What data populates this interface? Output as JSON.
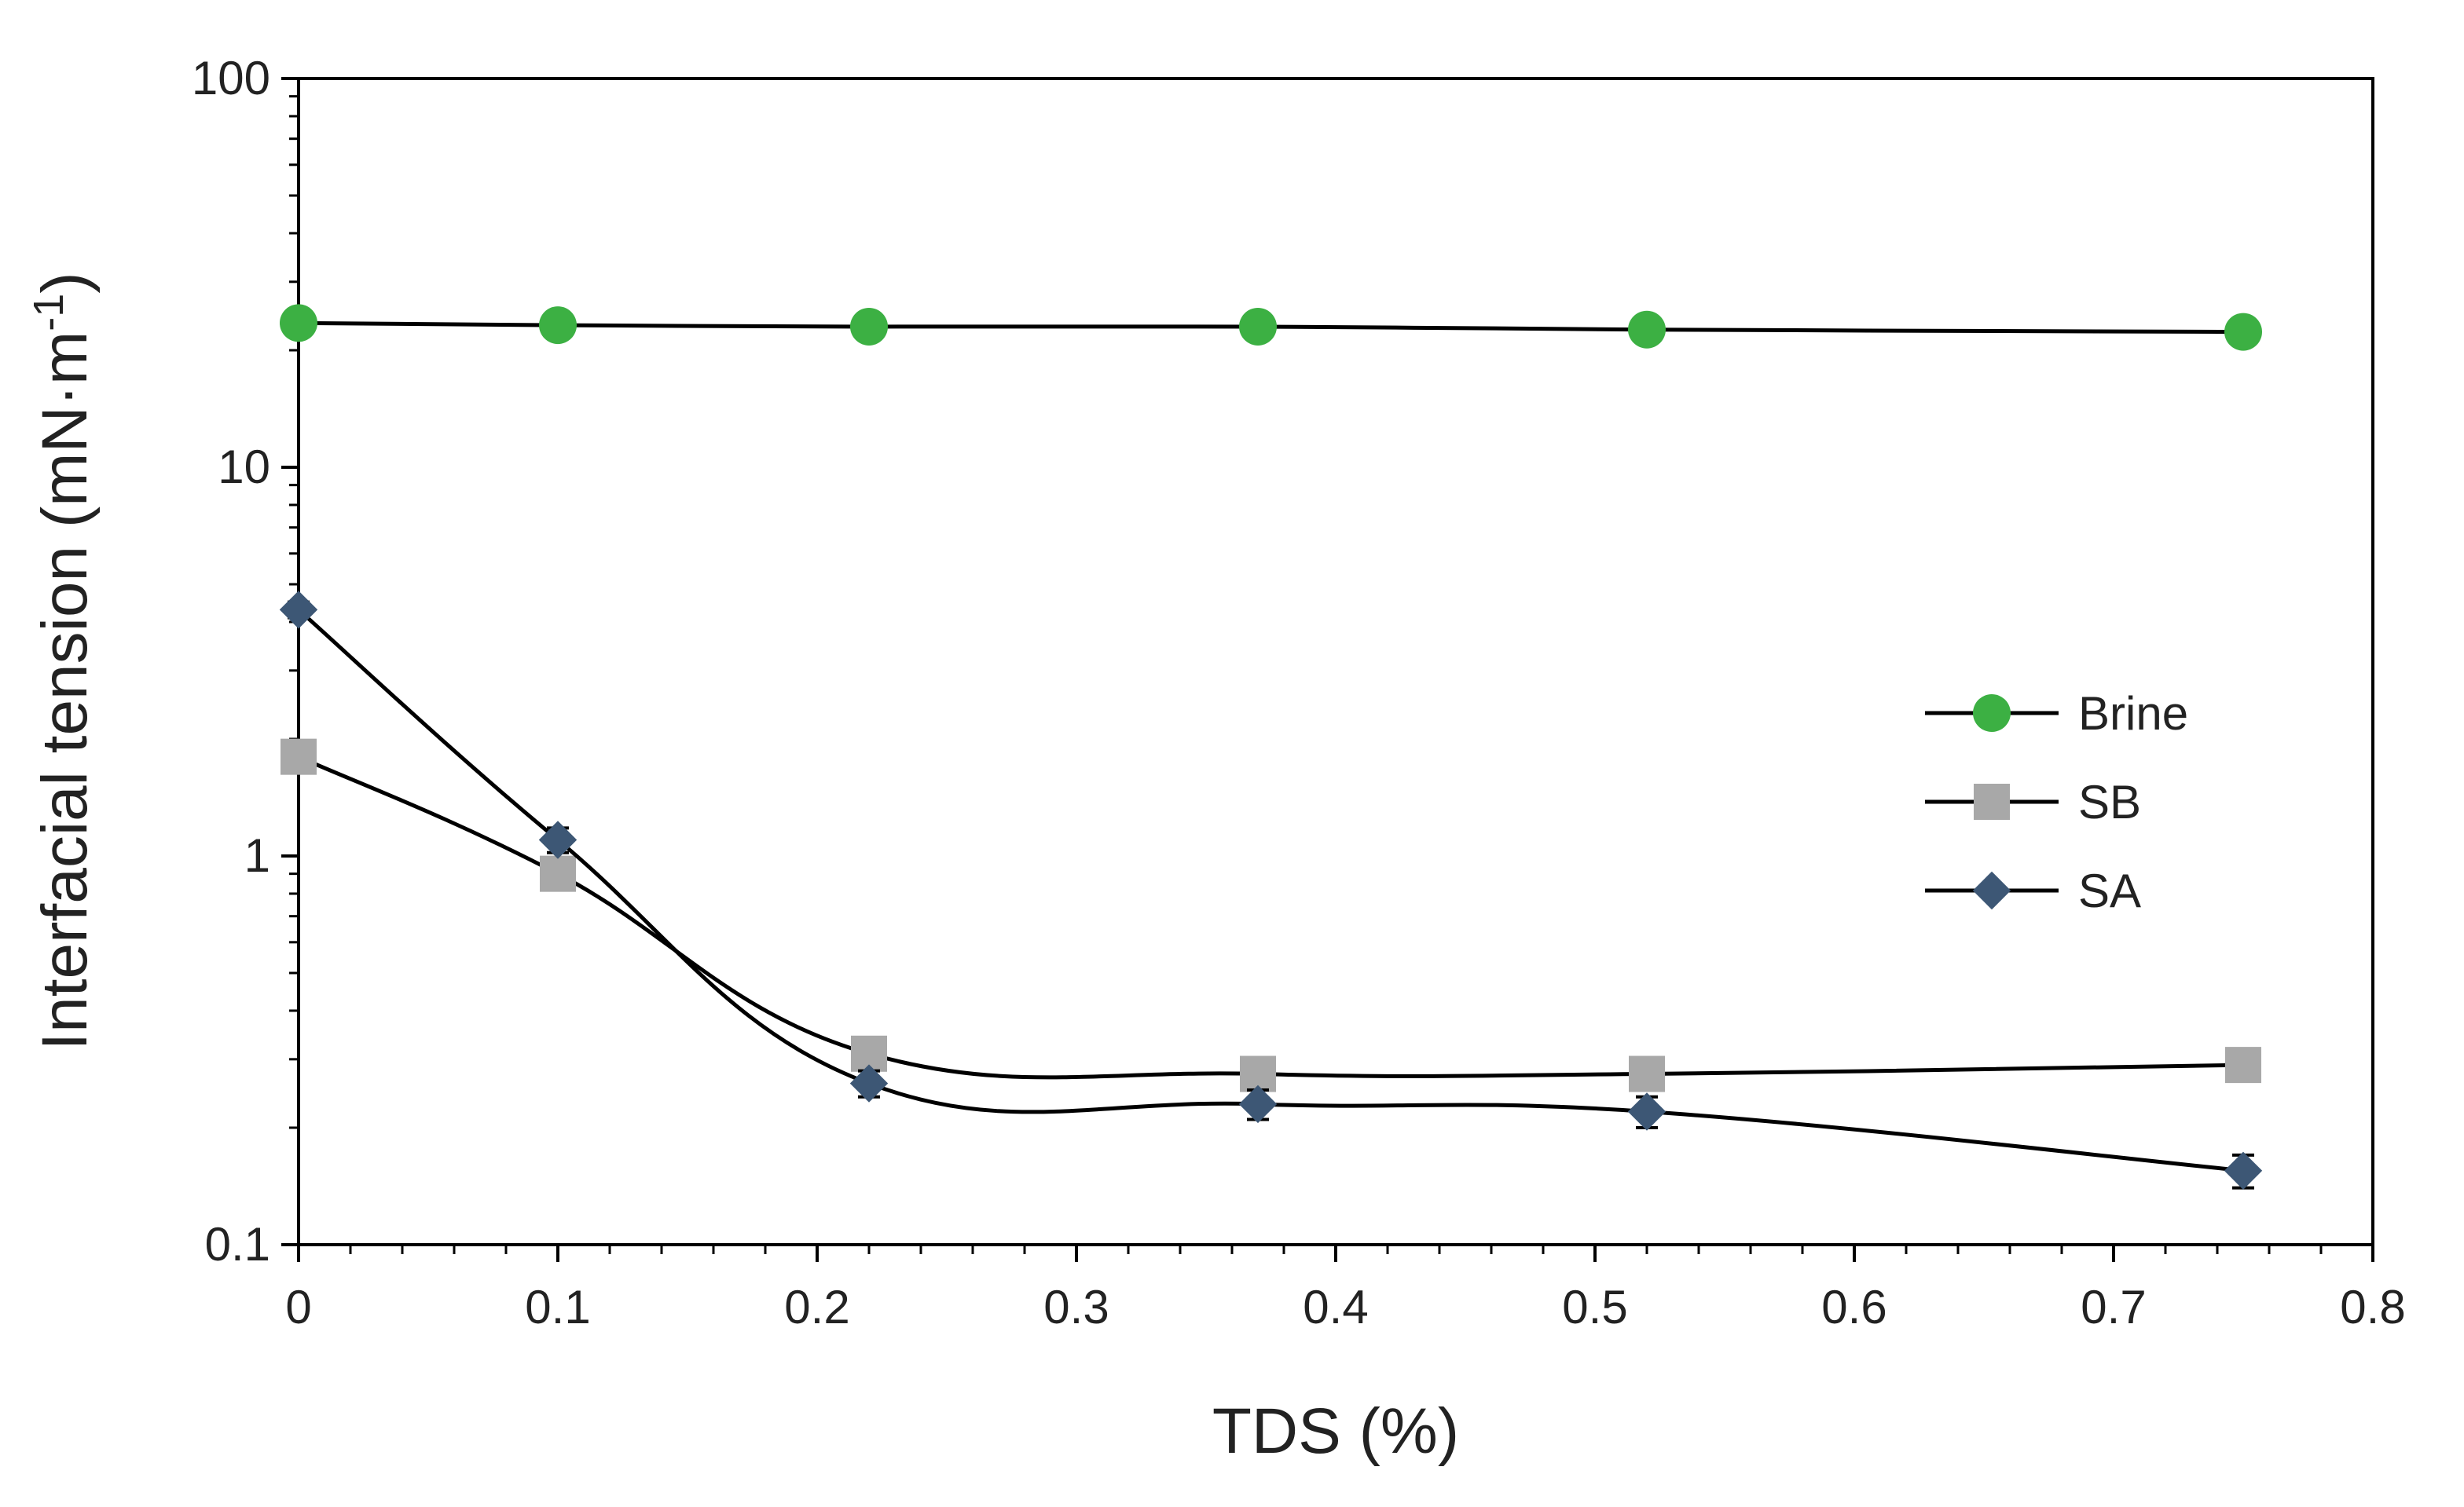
{
  "chart_data": {
    "type": "line",
    "title": "",
    "xlabel": "TDS (%)",
    "ylabel": "Interfacial tension (mN·m⁻¹)",
    "ylabel_main": "Interfacial tension (mN·m",
    "ylabel_sup": "-1",
    "ylabel_close": ")",
    "yscale": "log",
    "xlim": [
      0,
      0.8
    ],
    "ylim": [
      0.1,
      100
    ],
    "xticks": [
      "0",
      "0.1",
      "0.2",
      "0.3",
      "0.4",
      "0.5",
      "0.6",
      "0.7",
      "0.8"
    ],
    "yticks": [
      "0.1",
      "1",
      "10",
      "100"
    ],
    "legend_position": "center-right",
    "x": [
      0,
      0.1,
      0.22,
      0.37,
      0.52,
      0.75
    ],
    "series": [
      {
        "name": "Brine",
        "marker": "circle",
        "color": "#3cb043",
        "values": [
          23.5,
          23.2,
          23.0,
          23.0,
          22.6,
          22.3
        ],
        "error": [
          1.0,
          1.0,
          1.0,
          1.0,
          1.2,
          1.2
        ]
      },
      {
        "name": "SB",
        "marker": "square",
        "color": "#a8a8a8",
        "values": [
          1.8,
          0.9,
          0.31,
          0.275,
          0.275,
          0.29
        ],
        "error": [
          0.08,
          0.05,
          0.02,
          0.02,
          0.02,
          0.02
        ]
      },
      {
        "name": "SA",
        "marker": "diamond",
        "color": "#3d5775",
        "values": [
          4.3,
          1.1,
          0.26,
          0.23,
          0.22,
          0.155
        ],
        "error": [
          0.2,
          0.08,
          0.02,
          0.02,
          0.02,
          0.015
        ]
      }
    ]
  }
}
